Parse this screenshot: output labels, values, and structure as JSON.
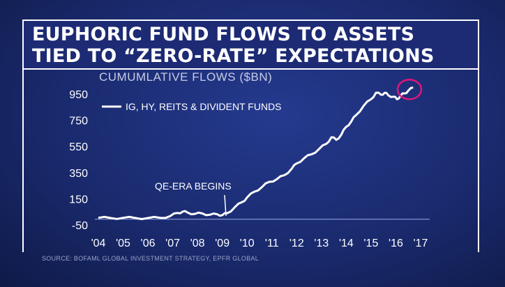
{
  "title_line1": "EUPHORIC FUND FLOWS TO ASSETS",
  "title_line2": "TIED TO “ZERO-RATE” EXPECTATIONS",
  "source": "SOURCE: BOFAML GLOBAL INVESTMENT STRATEGY, EPFR GLOBAL",
  "colors": {
    "header_bg": "#1d2a74",
    "line": "#ffffff",
    "highlight": "#e0157a",
    "baseline": "#7f8fd0"
  },
  "chart_data": {
    "type": "line",
    "title": "CUMUMLATIVE FLOWS ($BN)",
    "xlabel": "",
    "ylabel": "",
    "ylim": [
      -50,
      1050
    ],
    "xlim": [
      2004,
      2017
    ],
    "yticks": [
      -50,
      150,
      350,
      550,
      750,
      950
    ],
    "ytick_labels": [
      "-50",
      "150",
      "350",
      "550",
      "750",
      "950"
    ],
    "xticks": [
      2004,
      2005,
      2006,
      2007,
      2008,
      2009,
      2010,
      2011,
      2012,
      2013,
      2014,
      2015,
      2016,
      2017
    ],
    "xtick_labels": [
      "'04",
      "'05",
      "'06",
      "'07",
      "'08",
      "'09",
      "'10",
      "'11",
      "'12",
      "'13",
      "'14",
      "'15",
      "'16",
      "'17"
    ],
    "grid": false,
    "legend_position": "top-left",
    "series": [
      {
        "name": "IG, HY, REITS & DIVIDENT FUNDS",
        "x": [
          2004.0,
          2004.5,
          2005.0,
          2005.5,
          2006.0,
          2006.5,
          2006.9,
          2007.2,
          2007.4,
          2007.6,
          2007.9,
          2008.2,
          2008.5,
          2008.8,
          2009.0,
          2009.2,
          2009.5,
          2009.8,
          2010.0,
          2010.3,
          2010.6,
          2010.9,
          2011.2,
          2011.5,
          2011.8,
          2012.0,
          2012.3,
          2012.6,
          2012.9,
          2013.2,
          2013.4,
          2013.6,
          2013.8,
          2014.0,
          2014.2,
          2014.4,
          2014.7,
          2015.0,
          2015.2,
          2015.4,
          2015.55,
          2015.7,
          2015.9,
          2016.05,
          2016.2,
          2016.35,
          2016.5,
          2016.7
        ],
        "y": [
          5,
          3,
          5,
          3,
          3,
          5,
          18,
          42,
          52,
          45,
          35,
          38,
          28,
          32,
          25,
          40,
          85,
          125,
          160,
          205,
          240,
          280,
          300,
          330,
          380,
          420,
          460,
          490,
          530,
          570,
          620,
          600,
          640,
          700,
          740,
          790,
          860,
          910,
          960,
          945,
          960,
          940,
          930,
          910,
          940,
          955,
          975,
          1000
        ]
      }
    ],
    "annotations": [
      {
        "text": "QE-ERA BEGINS",
        "x": 2009.15,
        "y": 20
      }
    ],
    "highlight_circle": {
      "x": 2016.55,
      "y": 985
    }
  }
}
